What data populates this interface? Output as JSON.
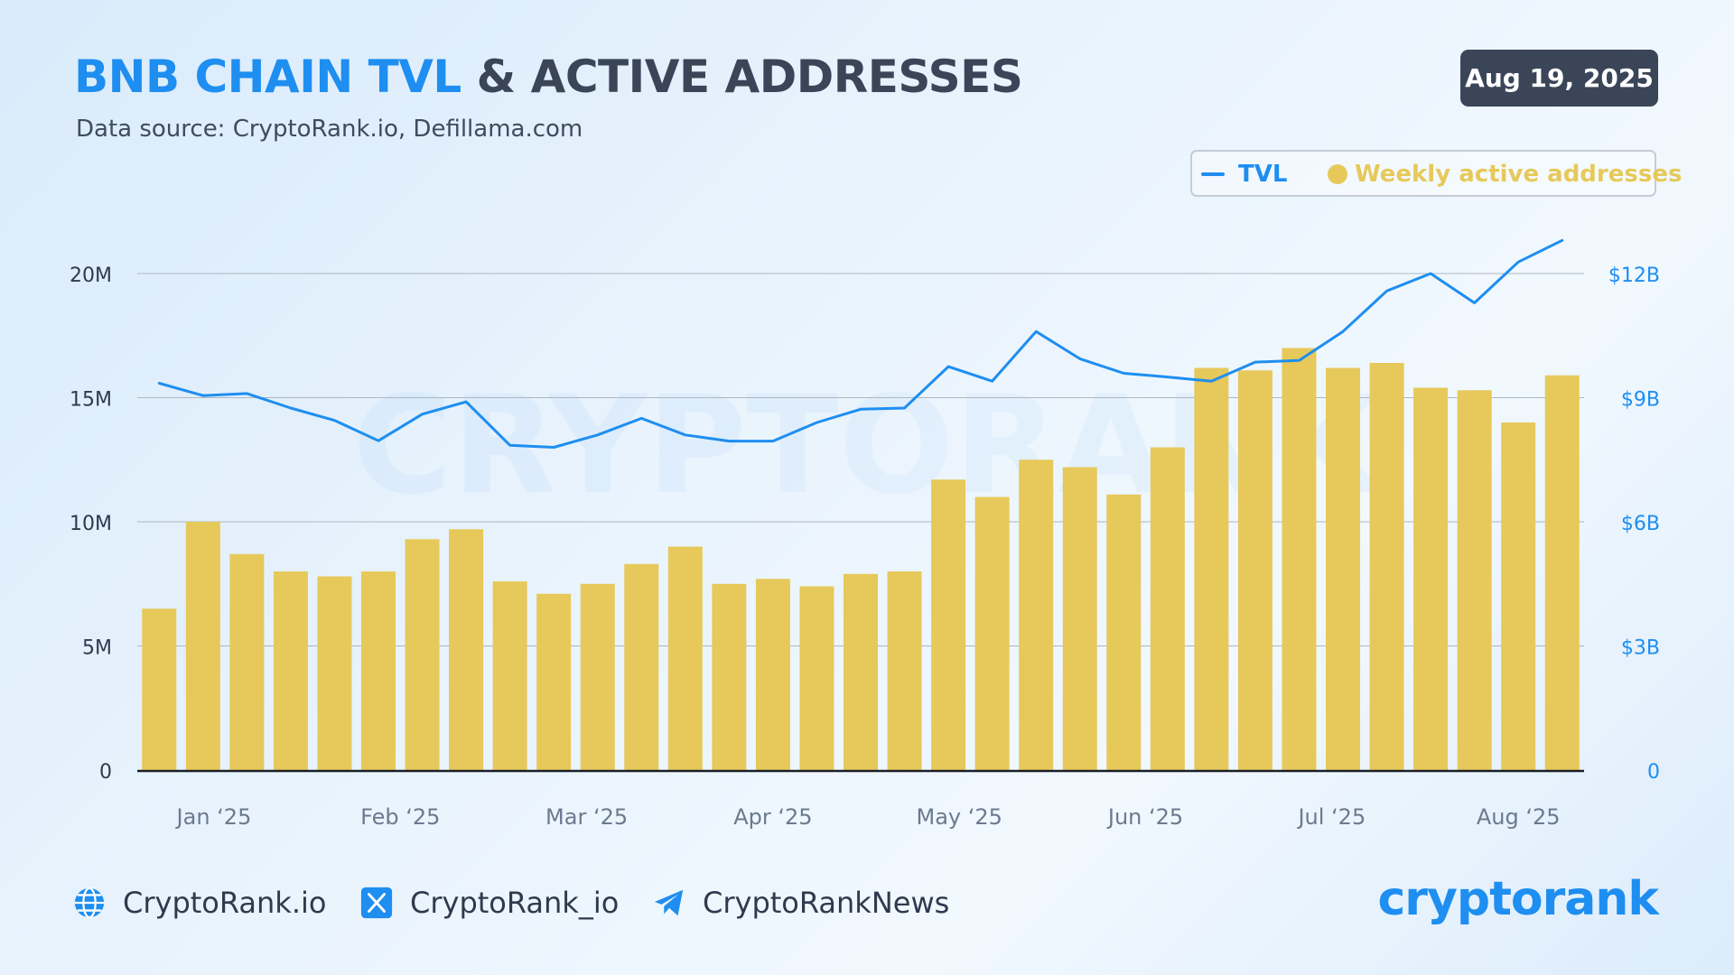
{
  "header": {
    "title_highlight": "BNB CHAIN TVL",
    "title_rest": "& ACTIVE ADDRESSES",
    "subtitle": "Data source: CryptoRank.io, Defillama.com",
    "date": "Aug 19, 2025"
  },
  "legend": {
    "tvl": "TVL",
    "addresses": "Weekly active addresses"
  },
  "watermark": "CRYPTORANK",
  "footer": {
    "website": "CryptoRank.io",
    "twitter": "CryptoRank_io",
    "telegram": "CryptoRankNews",
    "brand": "cryptorank"
  },
  "colors": {
    "tvl_line": "#1e8ef0",
    "bars": "#e6c95a",
    "title_accent": "#1e8ef0",
    "title_dark": "#3a4558"
  },
  "icons": [
    "globe-icon",
    "x-icon",
    "telegram-icon"
  ],
  "chart_data": {
    "type": "bar",
    "x_tick_labels": [
      "Jan ‘25",
      "Feb ‘25",
      "Mar ‘25",
      "Apr ‘25",
      "May ‘25",
      "Jun ‘25",
      "Jul ‘25",
      "Aug ‘25"
    ],
    "x_tick_positions": [
      1.75,
      6,
      10.25,
      14.5,
      18.75,
      23,
      27.25,
      31.5
    ],
    "left_axis": {
      "ticks": [
        "0",
        "5M",
        "10M",
        "15M",
        "20M"
      ],
      "range": [
        0,
        20000000
      ]
    },
    "right_axis": {
      "ticks": [
        "0",
        "$3B",
        "$6B",
        "$9B",
        "$12B"
      ],
      "range": [
        0,
        12000000000
      ]
    },
    "grid": true,
    "legend_position": "top-right",
    "series": [
      {
        "name": "Weekly active addresses",
        "type": "bar",
        "axis": "left",
        "values": [
          6500000,
          10000000,
          8700000,
          8000000,
          7800000,
          8000000,
          9300000,
          9700000,
          7600000,
          7100000,
          7500000,
          8300000,
          9000000,
          7500000,
          7700000,
          7400000,
          7900000,
          8000000,
          11700000,
          11000000,
          12500000,
          12200000,
          11100000,
          13000000,
          16200000,
          16100000,
          17000000,
          16200000,
          16400000,
          15400000,
          15300000,
          14000000,
          15900000
        ]
      },
      {
        "name": "TVL",
        "type": "line",
        "axis": "right",
        "values": [
          9350000000,
          9050000000,
          9100000000,
          8750000000,
          8450000000,
          7960000000,
          8600000000,
          8900000000,
          7850000000,
          7800000000,
          8100000000,
          8500000000,
          8100000000,
          7950000000,
          7950000000,
          8400000000,
          8720000000,
          8750000000,
          9750000000,
          9400000000,
          10600000000,
          9940000000,
          9590000000,
          9500000000,
          9400000000,
          9860000000,
          9900000000,
          10600000000,
          11580000000,
          12000000000,
          11290000000,
          12280000000,
          12800000000
        ]
      }
    ]
  }
}
